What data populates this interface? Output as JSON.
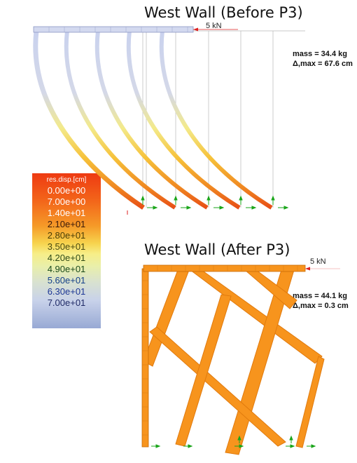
{
  "before": {
    "title": "West Wall (Before P3)",
    "load_label": "5 kN",
    "mass": "mass = 34.4 kg",
    "disp": "Δ,max = 67.6 cm"
  },
  "after": {
    "title": "West Wall (After P3)",
    "load_label": "5 kN",
    "mass": "mass = 44.1 kg",
    "disp": "Δ,max = 0.3 cm"
  },
  "legend": {
    "title": "res.disp.[cm]",
    "values": [
      "0.00e+00",
      "7.00e+00",
      "1.40e+01",
      "2.10e+01",
      "2.80e+01",
      "3.50e+01",
      "4.20e+01",
      "4.90e+01",
      "5.60e+01",
      "6.30e+01",
      "7.00e+01"
    ],
    "text_colors": [
      "#ffffff",
      "#ffffff",
      "#ffffff",
      "#3b1a0a",
      "#4a3d06",
      "#4a4a10",
      "#2f4a16",
      "#1b4a1b",
      "#14408a",
      "#1c3696",
      "#1f2a66"
    ]
  },
  "colors": {
    "deformed_top": "#c9d2ee",
    "deformed_bottom": "#ea5a18",
    "member": "#f7941d",
    "support": "#1aa51a",
    "load": "#dd2222"
  }
}
